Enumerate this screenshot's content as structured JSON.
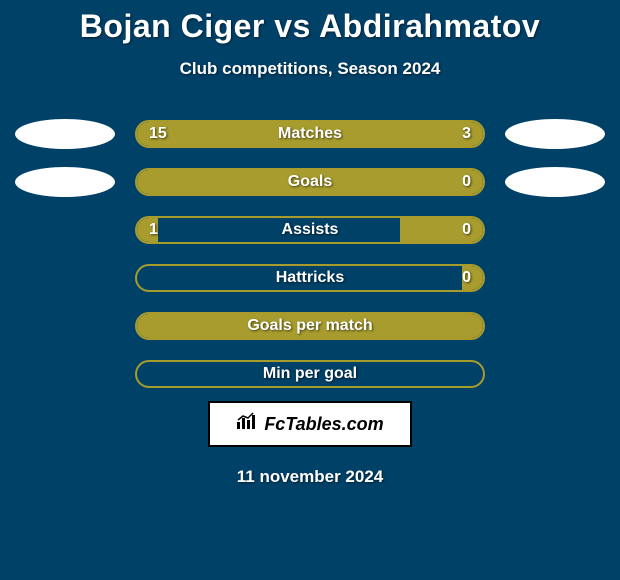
{
  "title": "Bojan Ciger vs Abdirahmatov",
  "subtitle": "Club competitions, Season 2024",
  "date": "11 november 2024",
  "brand": "FcTables.com",
  "colors": {
    "background": "#004168",
    "bar_fill": "#a79c2d",
    "bar_border": "#a79b2c",
    "ellipse": "#ffffff",
    "text": "#ffffff",
    "brand_bg": "#ffffff",
    "brand_text": "#000000"
  },
  "layout": {
    "bar_track_width": 350,
    "bar_track_height": 28,
    "bar_border_radius": 14,
    "ellipse_width": 100,
    "ellipse_height": 30,
    "title_fontsize": 32,
    "subtitle_fontsize": 17,
    "label_fontsize": 16
  },
  "stats": [
    {
      "label": "Matches",
      "left_val": "15",
      "right_val": "3",
      "left_pct": 76,
      "right_pct": 24,
      "show_left_val": true,
      "show_right_val": true,
      "show_left_ellipse": true,
      "show_right_ellipse": true
    },
    {
      "label": "Goals",
      "left_val": "",
      "right_val": "0",
      "left_pct": 94,
      "right_pct": 6,
      "show_left_val": false,
      "show_right_val": true,
      "show_left_ellipse": true,
      "show_right_ellipse": true
    },
    {
      "label": "Assists",
      "left_val": "1",
      "right_val": "0",
      "left_pct": 6,
      "right_pct": 24,
      "show_left_val": true,
      "show_right_val": true,
      "show_left_ellipse": false,
      "show_right_ellipse": false
    },
    {
      "label": "Hattricks",
      "left_val": "",
      "right_val": "0",
      "left_pct": 0,
      "right_pct": 6,
      "show_left_val": false,
      "show_right_val": true,
      "show_left_ellipse": false,
      "show_right_ellipse": false
    },
    {
      "label": "Goals per match",
      "left_val": "",
      "right_val": "",
      "left_pct": 100,
      "right_pct": 0,
      "show_left_val": false,
      "show_right_val": false,
      "show_left_ellipse": false,
      "show_right_ellipse": false,
      "full": true
    },
    {
      "label": "Min per goal",
      "left_val": "",
      "right_val": "",
      "left_pct": 0,
      "right_pct": 0,
      "show_left_val": false,
      "show_right_val": false,
      "show_left_ellipse": false,
      "show_right_ellipse": false
    }
  ]
}
